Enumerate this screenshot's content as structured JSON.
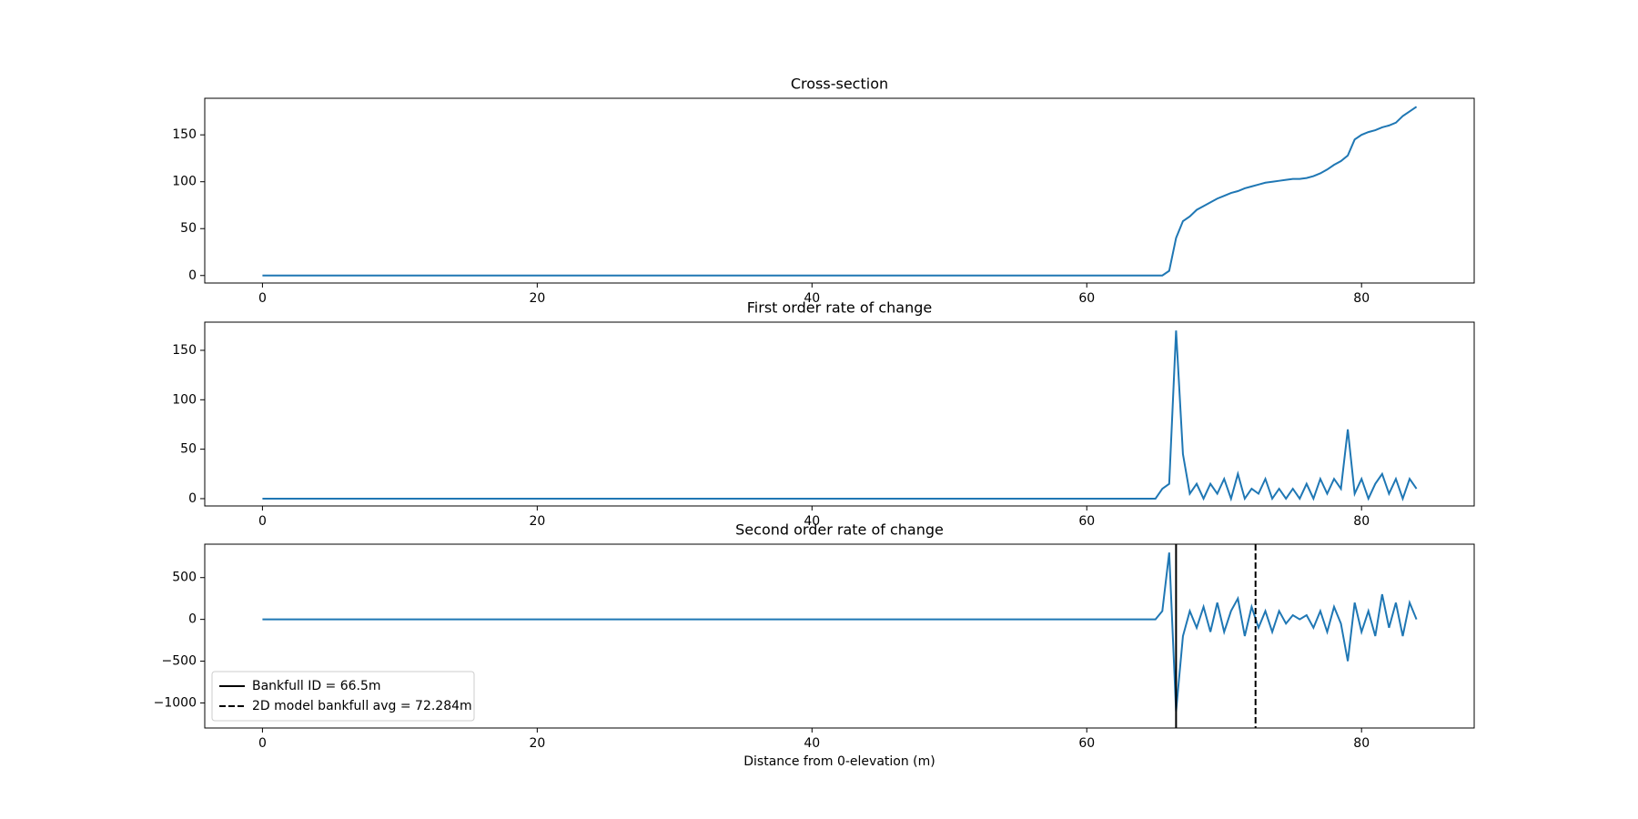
{
  "chart_data": [
    {
      "type": "line",
      "title": "Cross-section",
      "x": [
        0,
        65,
        65.5,
        66,
        66.5,
        67,
        67.5,
        68,
        68.5,
        69,
        69.5,
        70,
        70.5,
        71,
        71.5,
        72,
        72.5,
        73,
        73.5,
        74,
        74.5,
        75,
        75.5,
        76,
        76.5,
        77,
        77.5,
        78,
        78.5,
        79,
        79.5,
        80,
        80.5,
        81,
        81.5,
        82,
        82.5,
        83,
        83.5,
        84
      ],
      "series": [
        {
          "color": "#1f77b4",
          "values": [
            0,
            0,
            0,
            5,
            40,
            58,
            63,
            70,
            74,
            78,
            82,
            85,
            88,
            90,
            93,
            95,
            97,
            99,
            100,
            101,
            102,
            103,
            103,
            104,
            106,
            109,
            113,
            118,
            122,
            128,
            145,
            150,
            153,
            155,
            158,
            160,
            163,
            170,
            175,
            180
          ]
        }
      ],
      "xlim": [
        -4.2,
        88.2
      ],
      "xticks": [
        0,
        20,
        40,
        60,
        80
      ],
      "ylim": [
        -8,
        189
      ],
      "yticks": [
        0,
        50,
        100,
        150
      ]
    },
    {
      "type": "line",
      "title": "First order rate of change",
      "x": [
        0,
        65,
        65.5,
        66,
        66.5,
        67,
        67.5,
        68,
        68.5,
        69,
        69.5,
        70,
        70.5,
        71,
        71.5,
        72,
        72.5,
        73,
        73.5,
        74,
        74.5,
        75,
        75.5,
        76,
        76.5,
        77,
        77.5,
        78,
        78.5,
        79,
        79.5,
        80,
        80.5,
        81,
        81.5,
        82,
        82.5,
        83,
        83.5,
        84
      ],
      "series": [
        {
          "color": "#1f77b4",
          "values": [
            0,
            0,
            10,
            15,
            170,
            45,
            5,
            15,
            0,
            15,
            5,
            20,
            0,
            25,
            0,
            10,
            5,
            20,
            0,
            10,
            0,
            10,
            0,
            15,
            0,
            20,
            5,
            20,
            10,
            70,
            5,
            20,
            0,
            15,
            25,
            5,
            20,
            0,
            20,
            10
          ]
        }
      ],
      "xlim": [
        -4.2,
        88.2
      ],
      "xticks": [
        0,
        20,
        40,
        60,
        80
      ],
      "ylim": [
        -7.4,
        178.5
      ],
      "yticks": [
        0,
        50,
        100,
        150
      ]
    },
    {
      "type": "line",
      "title": "Second order rate of change",
      "xlabel": "Distance from 0-elevation (m)",
      "x": [
        0,
        65,
        65.5,
        66,
        66.5,
        67,
        67.5,
        68,
        68.5,
        69,
        69.5,
        70,
        70.5,
        71,
        71.5,
        72,
        72.5,
        73,
        73.5,
        74,
        74.5,
        75,
        75.5,
        76,
        76.5,
        77,
        77.5,
        78,
        78.5,
        79,
        79.5,
        80,
        80.5,
        81,
        81.5,
        82,
        82.5,
        83,
        83.5,
        84
      ],
      "series": [
        {
          "color": "#1f77b4",
          "values": [
            0,
            0,
            100,
            800,
            -1100,
            -200,
            100,
            -100,
            150,
            -150,
            200,
            -150,
            100,
            250,
            -200,
            150,
            -100,
            100,
            -150,
            100,
            -50,
            50,
            0,
            50,
            -100,
            100,
            -150,
            150,
            -50,
            -500,
            200,
            -150,
            100,
            -200,
            300,
            -100,
            200,
            -200,
            200,
            0
          ]
        }
      ],
      "vlines": [
        {
          "label": "Bankfull ID = 66.5m",
          "value": 66.5,
          "style": "solid",
          "color": "#000000"
        },
        {
          "label": "2D model bankfull avg = 72.284m",
          "value": 72.284,
          "style": "dashed",
          "color": "#000000"
        }
      ],
      "legend": "lower left",
      "xlim": [
        -4.2,
        88.2
      ],
      "xticks": [
        0,
        20,
        40,
        60,
        80
      ],
      "ylim": [
        -1300,
        900
      ],
      "yticks": [
        {
          "value": -1000,
          "label": "−1000"
        },
        {
          "value": -500,
          "label": "−500"
        },
        0,
        500
      ]
    }
  ]
}
